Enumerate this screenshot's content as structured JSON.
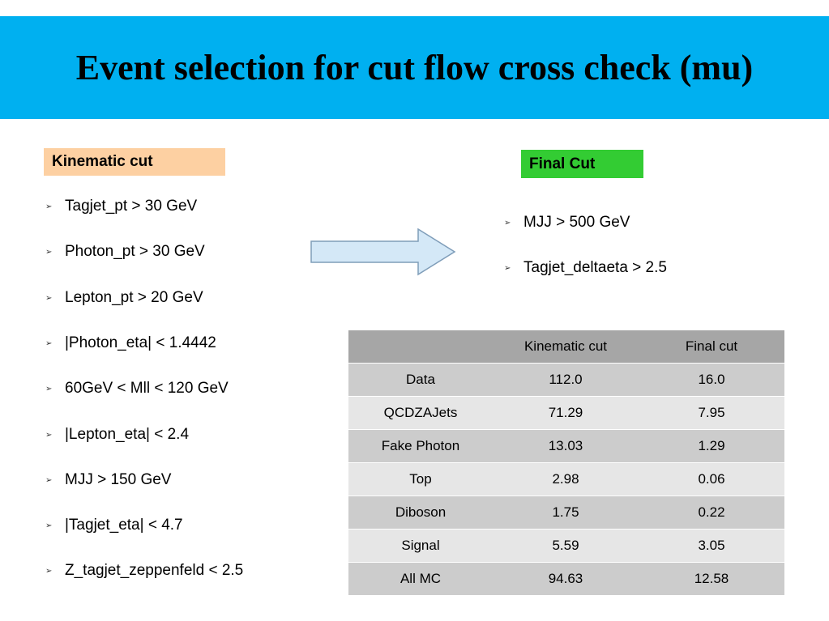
{
  "title": "Event selection for cut flow cross check (mu)",
  "kinematic_label": "Kinematic cut",
  "final_label": "Final Cut",
  "kinematic_cuts": [
    "Tagjet_pt > 30 GeV",
    "Photon_pt > 30 GeV",
    "Lepton_pt > 20 GeV",
    "|Photon_eta| < 1.4442",
    "60GeV < Mll < 120 GeV",
    "|Lepton_eta| < 2.4",
    "MJJ > 150 GeV",
    "|Tagjet_eta| < 4.7",
    "Z_tagjet_zeppenfeld < 2.5"
  ],
  "final_cuts": [
    "MJJ > 500 GeV",
    "Tagjet_deltaeta > 2.5"
  ],
  "bullet": "➢",
  "table": {
    "headers": [
      "",
      "Kinematic cut",
      "Final cut"
    ],
    "rows": [
      [
        "Data",
        "112.0",
        "16.0"
      ],
      [
        "QCDZAJets",
        "71.29",
        "7.95"
      ],
      [
        "Fake Photon",
        "13.03",
        "1.29"
      ],
      [
        "Top",
        "2.98",
        "0.06"
      ],
      [
        "Diboson",
        "1.75",
        "0.22"
      ],
      [
        "Signal",
        "5.59",
        "3.05"
      ],
      [
        "All MC",
        "94.63",
        "12.58"
      ]
    ]
  },
  "colors": {
    "title_bar": "#00b0f0",
    "kinematic_box": "#fdd0a2",
    "final_box": "#33cc33",
    "arrow_fill": "#d4e8f7",
    "arrow_stroke": "#7f9db9"
  }
}
